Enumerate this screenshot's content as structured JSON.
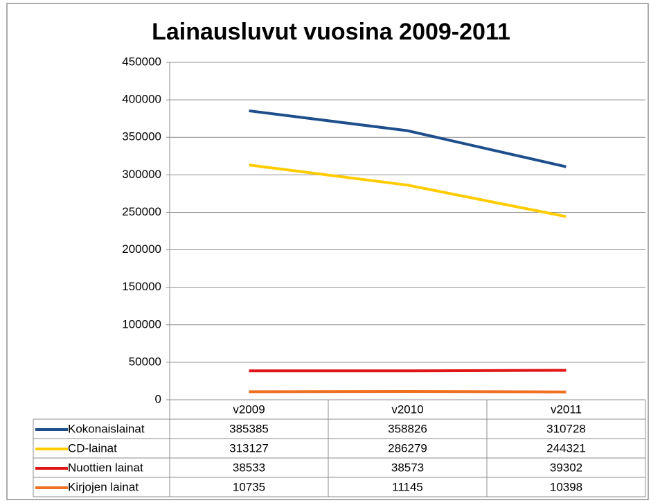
{
  "chart_data": {
    "type": "line",
    "title": "Lainausluvut vuosina 2009-2011",
    "categories": [
      "v2009",
      "v2010",
      "v2011"
    ],
    "series": [
      {
        "name": "Kokonaislainat",
        "color": "#1f4e8c",
        "values": [
          385385,
          358826,
          310728
        ]
      },
      {
        "name": "CD-lainat",
        "color": "#ffcc00",
        "values": [
          313127,
          286279,
          244321
        ]
      },
      {
        "name": "Nuottien lainat",
        "color": "#e01515",
        "values": [
          38533,
          38573,
          39302
        ]
      },
      {
        "name": "Kirjojen lainat",
        "color": "#f07020",
        "values": [
          10735,
          11145,
          10398
        ]
      }
    ],
    "ylim": [
      0,
      450000
    ],
    "yticks": [
      0,
      50000,
      100000,
      150000,
      200000,
      250000,
      300000,
      350000,
      400000,
      450000
    ],
    "grid": true
  }
}
